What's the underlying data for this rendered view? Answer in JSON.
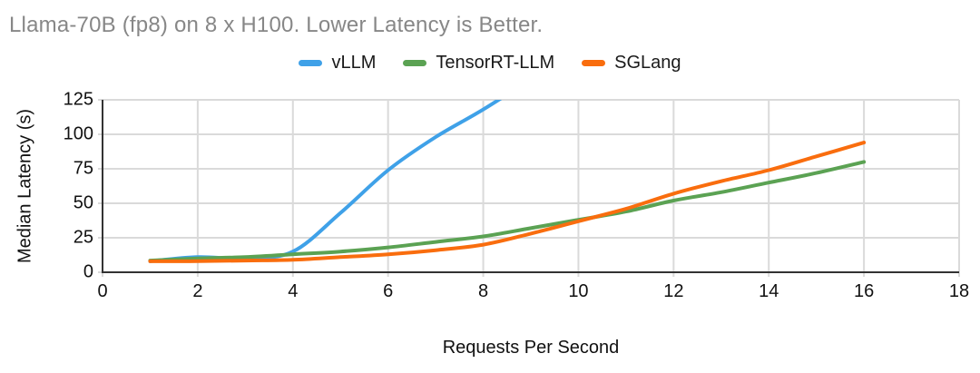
{
  "chart_data": {
    "type": "line",
    "title": "Llama-70B (fp8) on 8 x H100. Lower Latency is Better.",
    "xlabel": "Requests Per Second",
    "ylabel": "Median Latency (s)",
    "xlim": [
      0,
      18
    ],
    "ylim": [
      0,
      125
    ],
    "x_ticks": [
      0,
      2,
      4,
      6,
      8,
      10,
      12,
      14,
      16,
      18
    ],
    "y_ticks": [
      0,
      25,
      50,
      75,
      100,
      125
    ],
    "grid": true,
    "legend_position": "top-center",
    "colors": {
      "grid": "#dadada",
      "axis": "#333333",
      "tick_text": "#111111",
      "title_text": "#878787"
    },
    "series": [
      {
        "name": "vLLM",
        "color": "#3FA1E8",
        "x": [
          1,
          2,
          3,
          4,
          5,
          6,
          7,
          8,
          9
        ],
        "y": [
          8,
          11,
          10,
          15,
          43,
          74,
          98,
          118,
          140
        ],
        "note": "line exits top of plot (clipped above ymax) near x=8.4"
      },
      {
        "name": "TensorRT-LLM",
        "color": "#5BA253",
        "x": [
          1,
          2,
          3,
          4,
          5,
          6,
          7,
          8,
          9,
          10,
          11,
          12,
          13,
          14,
          15,
          16
        ],
        "y": [
          8.5,
          10,
          11,
          13,
          15,
          18,
          22,
          26,
          32,
          38,
          44,
          52,
          58,
          65,
          72,
          80
        ]
      },
      {
        "name": "SGLang",
        "color": "#F96D0E",
        "x": [
          1,
          2,
          3,
          4,
          5,
          6,
          7,
          8,
          9,
          10,
          11,
          12,
          13,
          14,
          15,
          16
        ],
        "y": [
          8,
          8,
          8.5,
          9,
          11,
          13,
          16,
          20,
          28,
          37,
          46,
          57,
          66,
          74,
          84,
          94
        ]
      }
    ]
  }
}
